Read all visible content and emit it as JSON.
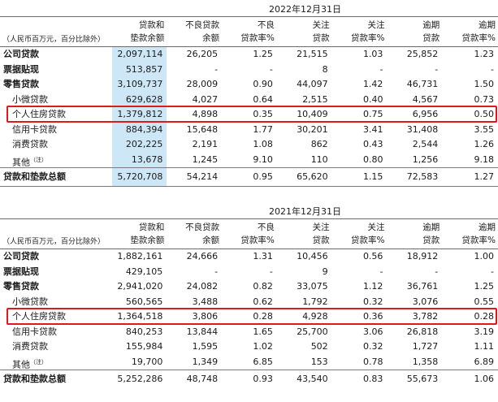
{
  "tables": [
    {
      "year": "2022年12月31日",
      "unit_note": "（人民币百万元，百分比除外）",
      "headers": [
        [
          "贷款和",
          "垫款余额"
        ],
        [
          "不良贷款",
          "余额"
        ],
        [
          "不良",
          "贷款率%"
        ],
        [
          "关注",
          "贷款"
        ],
        [
          "关注",
          "贷款率%"
        ],
        [
          "逾期",
          "贷款"
        ],
        [
          "逾期",
          "贷款率%"
        ]
      ],
      "rows": [
        {
          "label": "公司贷款",
          "values": [
            "2,097,114",
            "26,205",
            "1.25",
            "21,515",
            "1.03",
            "25,852",
            "1.23"
          ]
        },
        {
          "label": "票据贴现",
          "values": [
            "513,857",
            "-",
            "-",
            "8",
            "-",
            "-",
            "-"
          ]
        },
        {
          "label": "零售贷款",
          "values": [
            "3,109,737",
            "28,009",
            "0.90",
            "44,097",
            "1.42",
            "46,731",
            "1.50"
          ]
        },
        {
          "label": "小微贷款",
          "values": [
            "629,628",
            "4,027",
            "0.64",
            "2,515",
            "0.40",
            "4,567",
            "0.73"
          ]
        },
        {
          "label": "个人住房贷款",
          "values": [
            "1,379,812",
            "4,898",
            "0.35",
            "10,409",
            "0.75",
            "6,956",
            "0.50"
          ]
        },
        {
          "label": "信用卡贷款",
          "values": [
            "884,394",
            "15,648",
            "1.77",
            "30,201",
            "3.41",
            "31,408",
            "3.55"
          ]
        },
        {
          "label": "消费贷款",
          "values": [
            "202,225",
            "2,191",
            "1.08",
            "862",
            "0.43",
            "2,544",
            "1.26"
          ]
        },
        {
          "label": "其他",
          "label_sup": "（注）",
          "values": [
            "13,678",
            "1,245",
            "9.10",
            "110",
            "0.80",
            "1,256",
            "9.18"
          ]
        }
      ],
      "total": {
        "label": "贷款和垫款总额",
        "values": [
          "5,720,708",
          "54,214",
          "0.95",
          "65,620",
          "1.15",
          "72,583",
          "1.27"
        ]
      }
    },
    {
      "year": "2021年12月31日",
      "unit_note": "（人民币百万元，百分比除外）",
      "headers": [
        [
          "贷款和",
          "垫款余额"
        ],
        [
          "不良贷款",
          "余额"
        ],
        [
          "不良",
          "贷款率%"
        ],
        [
          "关注",
          "贷款"
        ],
        [
          "关注",
          "贷款率%"
        ],
        [
          "逾期",
          "贷款"
        ],
        [
          "逾期",
          "贷款率%"
        ]
      ],
      "rows": [
        {
          "label": "公司贷款",
          "values": [
            "1,882,161",
            "24,666",
            "1.31",
            "10,456",
            "0.56",
            "18,912",
            "1.00"
          ]
        },
        {
          "label": "票据贴现",
          "values": [
            "429,105",
            "-",
            "-",
            "9",
            "-",
            "-",
            "-"
          ]
        },
        {
          "label": "零售贷款",
          "values": [
            "2,941,020",
            "24,082",
            "0.82",
            "33,075",
            "1.12",
            "36,761",
            "1.25"
          ]
        },
        {
          "label": "小微贷款",
          "values": [
            "560,565",
            "3,488",
            "0.62",
            "1,792",
            "0.32",
            "3,076",
            "0.55"
          ]
        },
        {
          "label": "个人住房贷款",
          "values": [
            "1,364,518",
            "3,806",
            "0.28",
            "4,928",
            "0.36",
            "3,782",
            "0.28"
          ]
        },
        {
          "label": "信用卡贷款",
          "values": [
            "840,253",
            "13,844",
            "1.65",
            "25,700",
            "3.06",
            "26,818",
            "3.19"
          ]
        },
        {
          "label": "消费贷款",
          "values": [
            "155,984",
            "1,595",
            "1.02",
            "502",
            "0.32",
            "1,727",
            "1.11"
          ]
        },
        {
          "label": "其他",
          "label_sup": "（注）",
          "values": [
            "19,700",
            "1,349",
            "6.85",
            "153",
            "0.78",
            "1,358",
            "6.89"
          ]
        }
      ],
      "total": {
        "label": "贷款和垫款总额",
        "values": [
          "5,252,286",
          "48,748",
          "0.93",
          "43,540",
          "0.83",
          "55,673",
          "1.06"
        ]
      }
    }
  ],
  "colors": {
    "highlight_box": "#e01a1a",
    "shaded_column": "#cde7f7"
  }
}
